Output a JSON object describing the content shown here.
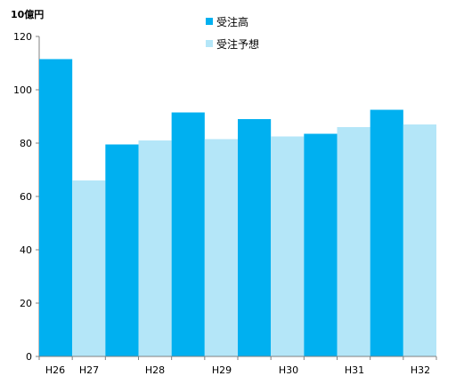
{
  "chart_data": {
    "type": "bar",
    "unit_label": "10億円",
    "categories": [
      "H26",
      "H27",
      "H28",
      "H29",
      "H30",
      "H31",
      "H32"
    ],
    "series": [
      {
        "name": "受注高",
        "color": "#00b0f0",
        "values": [
          111.5,
          null,
          79.5,
          91.5,
          89,
          83.5,
          92.5
        ]
      },
      {
        "name": "受注予想",
        "color": "#b4e6f8",
        "values": [
          null,
          66,
          81,
          81.5,
          82.5,
          86,
          87
        ]
      }
    ],
    "yticks": [
      0,
      20,
      40,
      60,
      80,
      100,
      120
    ],
    "ylim": [
      0,
      120
    ],
    "legend_position": "top-center",
    "grid": false
  }
}
